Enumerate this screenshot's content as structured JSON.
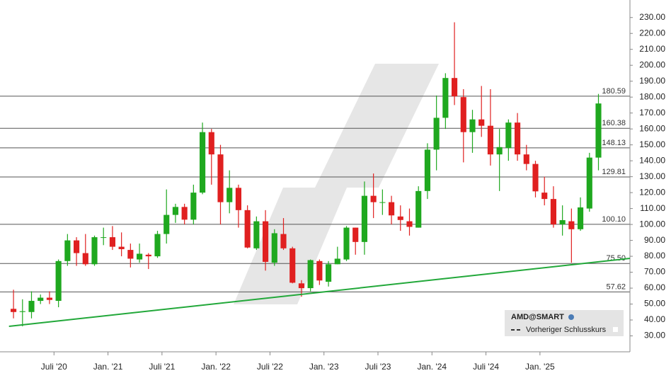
{
  "chart_data": {
    "type": "candlestick",
    "x": [
      "2020-02",
      "2020-03",
      "2020-04",
      "2020-05",
      "2020-06",
      "2020-07",
      "2020-08",
      "2020-09",
      "2020-10",
      "2020-11",
      "2020-12",
      "2021-01",
      "2021-02",
      "2021-03",
      "2021-04",
      "2021-05",
      "2021-06",
      "2021-07",
      "2021-08",
      "2021-09",
      "2021-10",
      "2021-11",
      "2021-12",
      "2022-01",
      "2022-02",
      "2022-03",
      "2022-04",
      "2022-05",
      "2022-06",
      "2022-07",
      "2022-08",
      "2022-09",
      "2022-10",
      "2022-11",
      "2022-12",
      "2023-01",
      "2023-02",
      "2023-03",
      "2023-04",
      "2023-05",
      "2023-06",
      "2023-07",
      "2023-08",
      "2023-09",
      "2023-10",
      "2023-11",
      "2023-12",
      "2024-01",
      "2024-02",
      "2024-03",
      "2024-04",
      "2024-05",
      "2024-06",
      "2024-07",
      "2024-08",
      "2024-09",
      "2024-10",
      "2024-11",
      "2024-12",
      "2025-01",
      "2025-02",
      "2025-03",
      "2025-04",
      "2025-05",
      "2025-06",
      "2025-07"
    ],
    "open": [
      47,
      45,
      45,
      52,
      54,
      52,
      77,
      90,
      82,
      75,
      92,
      92,
      86,
      84,
      78,
      81,
      80,
      94,
      106,
      111,
      103,
      120,
      158,
      144,
      114,
      123,
      109,
      85,
      102,
      76,
      94,
      85,
      63,
      60,
      77,
      64,
      75,
      78,
      98,
      89,
      118,
      114,
      114,
      105,
      102,
      98,
      121,
      147,
      167,
      192,
      180,
      158,
      166,
      162,
      144,
      148,
      164,
      144,
      138,
      120,
      116,
      100,
      102,
      97,
      110,
      142
    ],
    "high": [
      59,
      53,
      58,
      56,
      58,
      78,
      94,
      92,
      94,
      93,
      98,
      99,
      95,
      88,
      88,
      82,
      96,
      122,
      113,
      113,
      125,
      164,
      160,
      150,
      134,
      125,
      112,
      105,
      109,
      97,
      104,
      86,
      65,
      78,
      78,
      77,
      86,
      99,
      98,
      127,
      132,
      122,
      118,
      112,
      110,
      124,
      151,
      181,
      195,
      227,
      185,
      172,
      187,
      185,
      160,
      166,
      170,
      150,
      140,
      130,
      124,
      112,
      110,
      117,
      145,
      182
    ],
    "low": [
      41,
      36,
      41,
      50,
      50,
      48,
      74,
      74,
      74,
      74,
      87,
      84,
      80,
      73,
      76,
      72,
      79,
      88,
      101,
      100,
      100,
      119,
      125,
      100,
      107,
      98,
      85,
      84,
      71,
      74,
      84,
      63,
      54.6,
      58,
      62,
      61,
      75,
      77,
      81,
      81,
      104,
      106,
      100,
      96,
      93,
      98,
      116,
      134,
      160,
      175,
      139,
      145,
      155,
      137,
      121,
      140,
      140,
      134,
      117,
      112,
      98,
      93,
      76,
      96,
      108,
      134
    ],
    "close": [
      45,
      45.5,
      52,
      54,
      52.6,
      77,
      90,
      82,
      75,
      92,
      92,
      86,
      84.5,
      78.5,
      81.6,
      80,
      94,
      106,
      111,
      103,
      120,
      158,
      144,
      114,
      123,
      109,
      85.5,
      102,
      76.5,
      94.5,
      85,
      63.4,
      60,
      77.6,
      64.8,
      75,
      78.5,
      98,
      89,
      118,
      114,
      114,
      105.7,
      102.8,
      98.5,
      121,
      147,
      167,
      192,
      180.5,
      158,
      166,
      162,
      144,
      148.6,
      164,
      144,
      138,
      120.8,
      116,
      100,
      102.7,
      97,
      110.7,
      142,
      176
    ],
    "up_color": "#1fa81f",
    "down_color": "#e02020",
    "xlim": [
      "2020-01",
      "2025-11"
    ],
    "xticks": [
      {
        "value": "2020-07",
        "label": "Juli '20"
      },
      {
        "value": "2021-01",
        "label": "Jan. '21"
      },
      {
        "value": "2021-07",
        "label": "Juli '21"
      },
      {
        "value": "2022-01",
        "label": "Jan. '22"
      },
      {
        "value": "2022-07",
        "label": "Juli '22"
      },
      {
        "value": "2023-01",
        "label": "Jan. '23"
      },
      {
        "value": "2023-07",
        "label": "Juli '23"
      },
      {
        "value": "2024-01",
        "label": "Jan. '24"
      },
      {
        "value": "2024-07",
        "label": "Juli '24"
      },
      {
        "value": "2025-01",
        "label": "Jan. '25"
      }
    ],
    "ylim": [
      20,
      241
    ],
    "yticks": [
      {
        "value": 30,
        "label": "30.00"
      },
      {
        "value": 40,
        "label": "40.00"
      },
      {
        "value": 50,
        "label": "50.00"
      },
      {
        "value": 60,
        "label": "60.00"
      },
      {
        "value": 70,
        "label": "70.00"
      },
      {
        "value": 80,
        "label": "80.00"
      },
      {
        "value": 90,
        "label": "90.00"
      },
      {
        "value": 100,
        "label": "100.00"
      },
      {
        "value": 110,
        "label": "110.00"
      },
      {
        "value": 120,
        "label": "120.00"
      },
      {
        "value": 130,
        "label": "130.00"
      },
      {
        "value": 140,
        "label": "140.00"
      },
      {
        "value": 150,
        "label": "150.00"
      },
      {
        "value": 160,
        "label": "160.00"
      },
      {
        "value": 170,
        "label": "170.00"
      },
      {
        "value": 180,
        "label": "180.00"
      },
      {
        "value": 190,
        "label": "190.00"
      },
      {
        "value": 200,
        "label": "200.00"
      },
      {
        "value": 210,
        "label": "210.00"
      },
      {
        "value": 220,
        "label": "220.00"
      },
      {
        "value": 230,
        "label": "230.00"
      }
    ],
    "levels": [
      180.59,
      160.38,
      148.13,
      129.81,
      {
        "value": 100.1,
        "label": "100.10"
      },
      {
        "value": 75.5,
        "label": "75.50"
      },
      57.62
    ],
    "trendline": {
      "color": "#22a83a",
      "x": [
        "2020-02",
        "2025-11"
      ],
      "y": [
        36,
        78.7
      ]
    },
    "legend": {
      "title": "AMD@SMART",
      "entries": [
        "Vorheriger Schlusskurs"
      ]
    }
  }
}
